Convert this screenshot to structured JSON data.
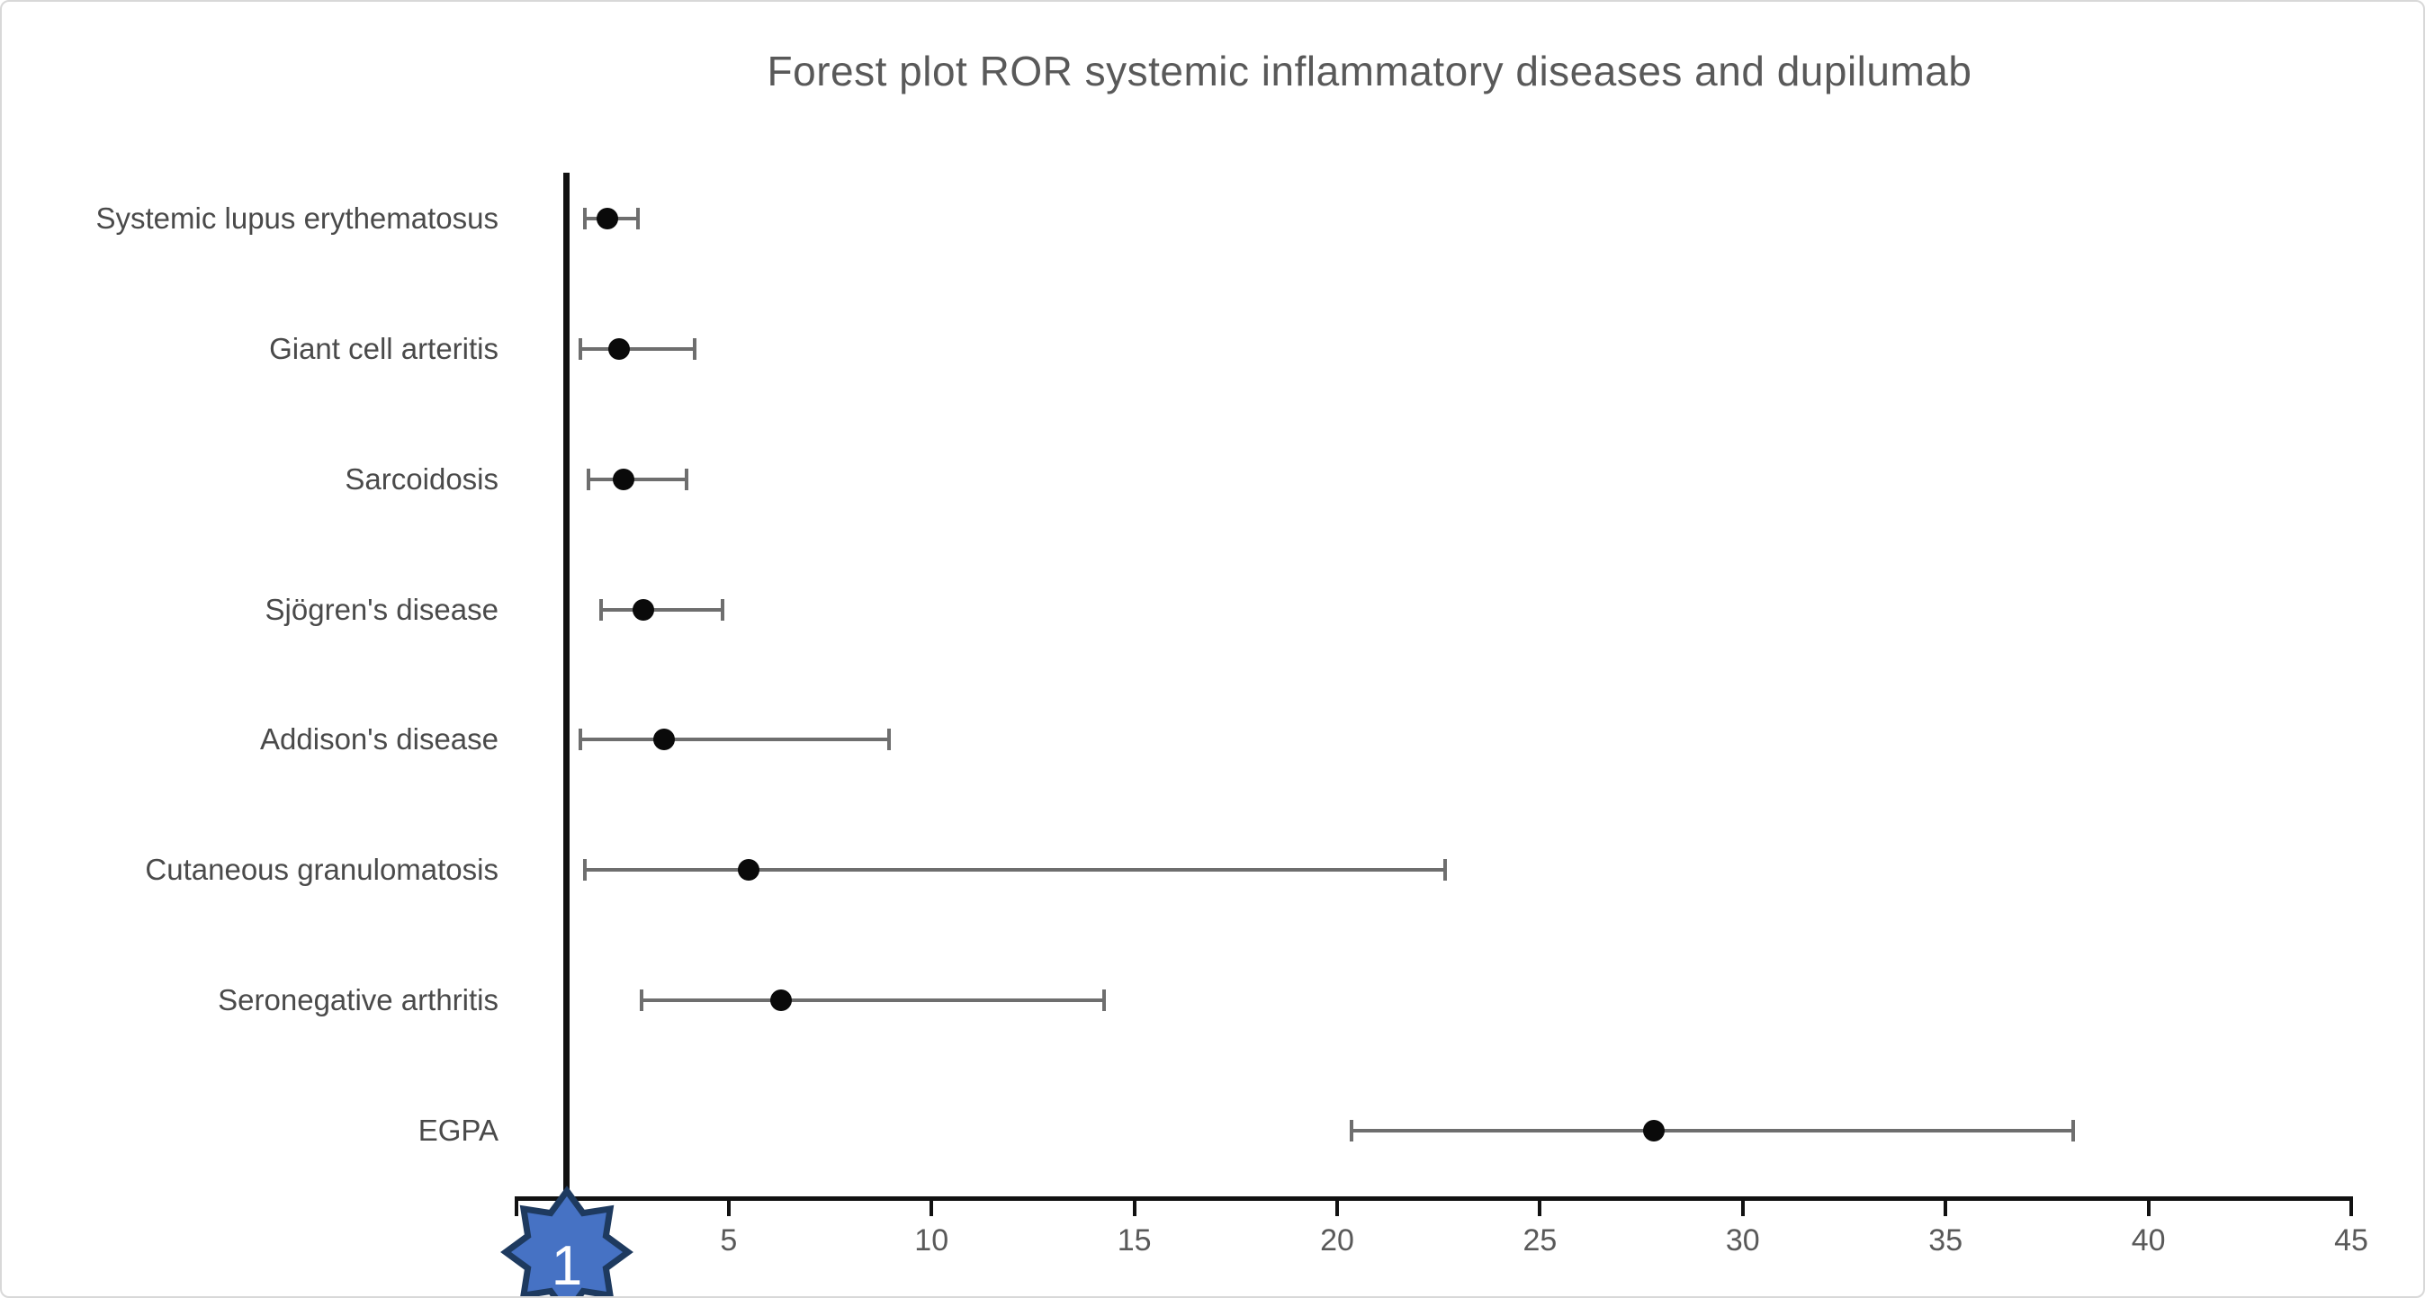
{
  "window": {
    "background": "#ffffff",
    "border_color": "#d8d8d8"
  },
  "chart_data": {
    "type": "scatter",
    "subtype": "forest_plot",
    "title": "Forest plot ROR systemic inflammatory diseases and dupilumab",
    "xlabel": "",
    "ylabel": "",
    "grid": false,
    "legend": "none",
    "x_axis": {
      "min": 0,
      "max": 45,
      "ticks": [
        5,
        10,
        15,
        20,
        25,
        30,
        35,
        40,
        45
      ],
      "reference_line_value": 1
    },
    "categories": [
      "Systemic lupus erythematosus",
      "Giant cell arteritis",
      "Sarcoidosis",
      "Sjögren's disease",
      "Addison's disease",
      "Cutaneous granulomatosis",
      "Seronegative arthritis",
      "EGPA"
    ],
    "points": [
      {
        "label": "Systemic lupus erythematosus",
        "ror": 2.0,
        "ci_low": 1.4,
        "ci_high": 2.8
      },
      {
        "label": "Giant cell arteritis",
        "ror": 2.3,
        "ci_low": 1.3,
        "ci_high": 4.2
      },
      {
        "label": "Sarcoidosis",
        "ror": 2.4,
        "ci_low": 1.5,
        "ci_high": 4.0
      },
      {
        "label": "Sjögren's disease",
        "ror": 2.9,
        "ci_low": 1.8,
        "ci_high": 4.9
      },
      {
        "label": "Addison's disease",
        "ror": 3.4,
        "ci_low": 1.3,
        "ci_high": 9.0
      },
      {
        "label": "Cutaneous granulomatosis",
        "ror": 5.5,
        "ci_low": 1.4,
        "ci_high": 22.7
      },
      {
        "label": "Seronegative arthritis",
        "ror": 6.3,
        "ci_low": 2.8,
        "ci_high": 14.3
      },
      {
        "label": "EGPA",
        "ror": 27.8,
        "ci_low": 20.3,
        "ci_high": 38.2
      }
    ],
    "reference_marker": {
      "label": "1",
      "fill": "#4672c4",
      "border": "#1e3a5f",
      "text_color": "#ffffff"
    },
    "colors": {
      "title_text": "#595959",
      "category_text": "#4a4a4a",
      "tick_text": "#595959",
      "axis": "#111111",
      "error_bar": "#6e6e6e",
      "point_marker": "#0a0a0a"
    }
  }
}
